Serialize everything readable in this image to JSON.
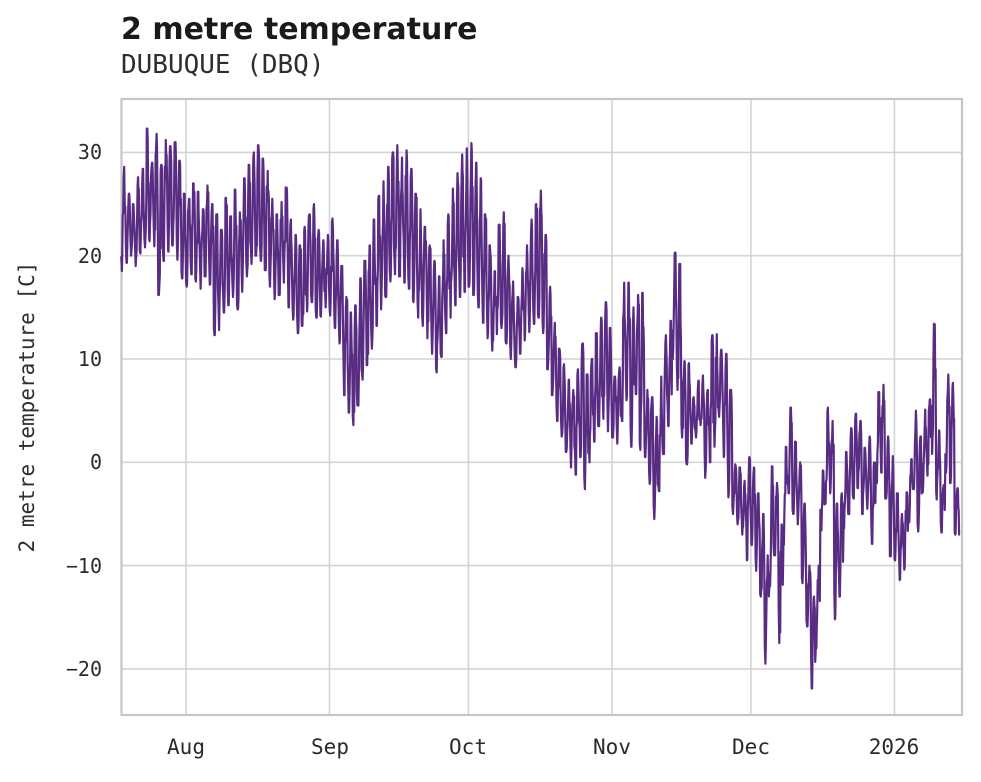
{
  "chart_data": {
    "type": "line",
    "title": "2 metre temperature",
    "subtitle": "DUBUQUE (DBQ)",
    "xlabel": "",
    "ylabel": "2 metre temperature [C]",
    "legend": null,
    "grid": true,
    "ylim": [
      -24.6,
      35.2
    ],
    "y_ticks": [
      {
        "label": "30",
        "value": 30
      },
      {
        "label": "20",
        "value": 20
      },
      {
        "label": "10",
        "value": 10
      },
      {
        "label": "0",
        "value": 0
      },
      {
        "label": "−10",
        "value": -10
      },
      {
        "label": "−20",
        "value": -20
      }
    ],
    "x_ticks": [
      {
        "label": "Aug",
        "day": 14
      },
      {
        "label": "Sep",
        "day": 45
      },
      {
        "label": "Oct",
        "day": 75
      },
      {
        "label": "Nov",
        "day": 106
      },
      {
        "label": "Dec",
        "day": 136
      },
      {
        "label": "2026",
        "day": 167
      }
    ],
    "x_start_date": "2025-07-18",
    "x_end_date": "2026-01-14",
    "sampling": "hourly trace summarized as daily min/max",
    "colors": {
      "line": "#582c82",
      "grid": "#d4d4d4",
      "spine": "#c6c6c6",
      "title": "#1a1a1a",
      "text": "#2e2e2e"
    },
    "series": [
      {
        "name": "2 metre temperature [C]",
        "daily_tmin": [
          18.5,
          19.3,
          20.0,
          19.0,
          20.2,
          20.8,
          21.4,
          20.9,
          16.2,
          19.5,
          20.4,
          21.0,
          19.6,
          17.8,
          17.0,
          18.2,
          17.5,
          16.8,
          18.0,
          17.2,
          12.3,
          12.8,
          14.5,
          15.2,
          16.0,
          14.8,
          16.5,
          18.0,
          19.2,
          20.0,
          19.5,
          18.6,
          17.0,
          15.8,
          16.2,
          17.4,
          15.0,
          13.8,
          12.5,
          13.2,
          14.6,
          15.5,
          14.0,
          14.1,
          15.0,
          14.2,
          13.0,
          11.5,
          6.5,
          4.8,
          3.6,
          5.5,
          8.0,
          9.4,
          11.0,
          13.2,
          14.8,
          16.0,
          17.5,
          18.2,
          18.0,
          17.4,
          16.8,
          15.5,
          14.0,
          13.2,
          12.0,
          10.5,
          8.7,
          10.2,
          12.5,
          14.0,
          15.2,
          16.0,
          16.5,
          17.0,
          16.2,
          15.0,
          13.5,
          12.0,
          10.8,
          12.4,
          13.0,
          11.5,
          10.0,
          9.2,
          10.5,
          11.8,
          12.6,
          13.4,
          14.0,
          12.5,
          9.0,
          6.5,
          4.0,
          2.5,
          1.0,
          -0.5,
          -1.2,
          0.5,
          -2.6,
          0.0,
          2.0,
          3.5,
          4.2,
          3.0,
          2.4,
          1.8,
          4.0,
          6.0,
          1.5,
          6.6,
          1.2,
          0.5,
          -2.1,
          -5.5,
          -2.8,
          0.8,
          3.5,
          10.0,
          7.0,
          2.4,
          -0.2,
          1.8,
          2.4,
          3.6,
          -1.5,
          0.0,
          1.5,
          4.4,
          0.5,
          -3.4,
          -5.0,
          -6.0,
          -7.0,
          -9.5,
          -8.0,
          -10.5,
          -13.0,
          -19.5,
          -12.0,
          -9.0,
          -17.5,
          -8.0,
          -3.0,
          -5.0,
          -6.0,
          -11.7,
          -15.9,
          -21.9,
          -18.0,
          -6.6,
          -4.0,
          -3.0,
          -15.2,
          -13.0,
          -6.4,
          -5.0,
          -3.5,
          -2.5,
          -5.0,
          -4.5,
          -7.9,
          -2.0,
          -1.0,
          -3.5,
          -9.1,
          -9.5,
          -11.4,
          -10.4,
          -5.8,
          -2.6,
          -6.7,
          -2.9,
          -1.3,
          0.8,
          -3.6,
          -6.8,
          -1.0,
          -2.0,
          -7.0
        ],
        "daily_tmax": [
          28.6,
          26.0,
          25.0,
          27.6,
          28.4,
          32.3,
          29.0,
          31.8,
          28.8,
          31.2,
          30.6,
          31.0,
          29.2,
          26.0,
          25.5,
          27.0,
          26.2,
          24.5,
          26.8,
          25.0,
          24.0,
          22.5,
          25.6,
          23.8,
          26.4,
          24.2,
          27.5,
          28.8,
          30.0,
          30.7,
          29.4,
          28.2,
          25.5,
          24.0,
          25.2,
          26.6,
          23.5,
          22.0,
          21.0,
          22.8,
          24.0,
          25.0,
          22.5,
          21.5,
          22.0,
          23.6,
          21.5,
          19.0,
          16.0,
          14.5,
          15.2,
          17.8,
          19.5,
          21.0,
          23.5,
          25.8,
          27.2,
          28.6,
          30.0,
          30.7,
          29.5,
          30.2,
          28.4,
          26.0,
          24.5,
          22.8,
          21.0,
          19.5,
          18.0,
          21.5,
          24.0,
          26.5,
          28.0,
          29.8,
          30.4,
          30.9,
          29.0,
          27.5,
          24.0,
          21.0,
          18.5,
          23.0,
          24.2,
          20.0,
          17.5,
          16.0,
          18.8,
          21.0,
          23.5,
          25.0,
          26.3,
          22.0,
          17.0,
          13.5,
          11.0,
          9.5,
          8.0,
          7.0,
          9.0,
          11.5,
          8.5,
          10.0,
          12.5,
          14.0,
          15.5,
          13.0,
          8.3,
          9.2,
          17.4,
          17.4,
          15.0,
          16.2,
          16.4,
          7.0,
          6.3,
          4.4,
          8.3,
          12.3,
          13.7,
          20.3,
          19.2,
          9.8,
          9.6,
          6.3,
          7.9,
          8.4,
          7.0,
          12.3,
          12.4,
          10.9,
          10.5,
          7.0,
          -0.2,
          -0.5,
          -1.8,
          0.5,
          -0.5,
          -3.0,
          -5.0,
          -9.0,
          -0.4,
          -2.0,
          -6.0,
          1.5,
          5.3,
          2.0,
          0.0,
          -4.0,
          -10.0,
          -13.0,
          -10.0,
          -0.8,
          5.3,
          4.0,
          -4.0,
          -3.0,
          1.0,
          3.3,
          4.7,
          4.0,
          1.4,
          2.5,
          0.0,
          6.8,
          7.5,
          2.5,
          0.6,
          -3.0,
          -5.0,
          -2.9,
          0.3,
          5.0,
          2.5,
          5.1,
          6.1,
          13.4,
          3.1,
          -2.2,
          8.5,
          7.7,
          -2.5
        ]
      }
    ]
  }
}
